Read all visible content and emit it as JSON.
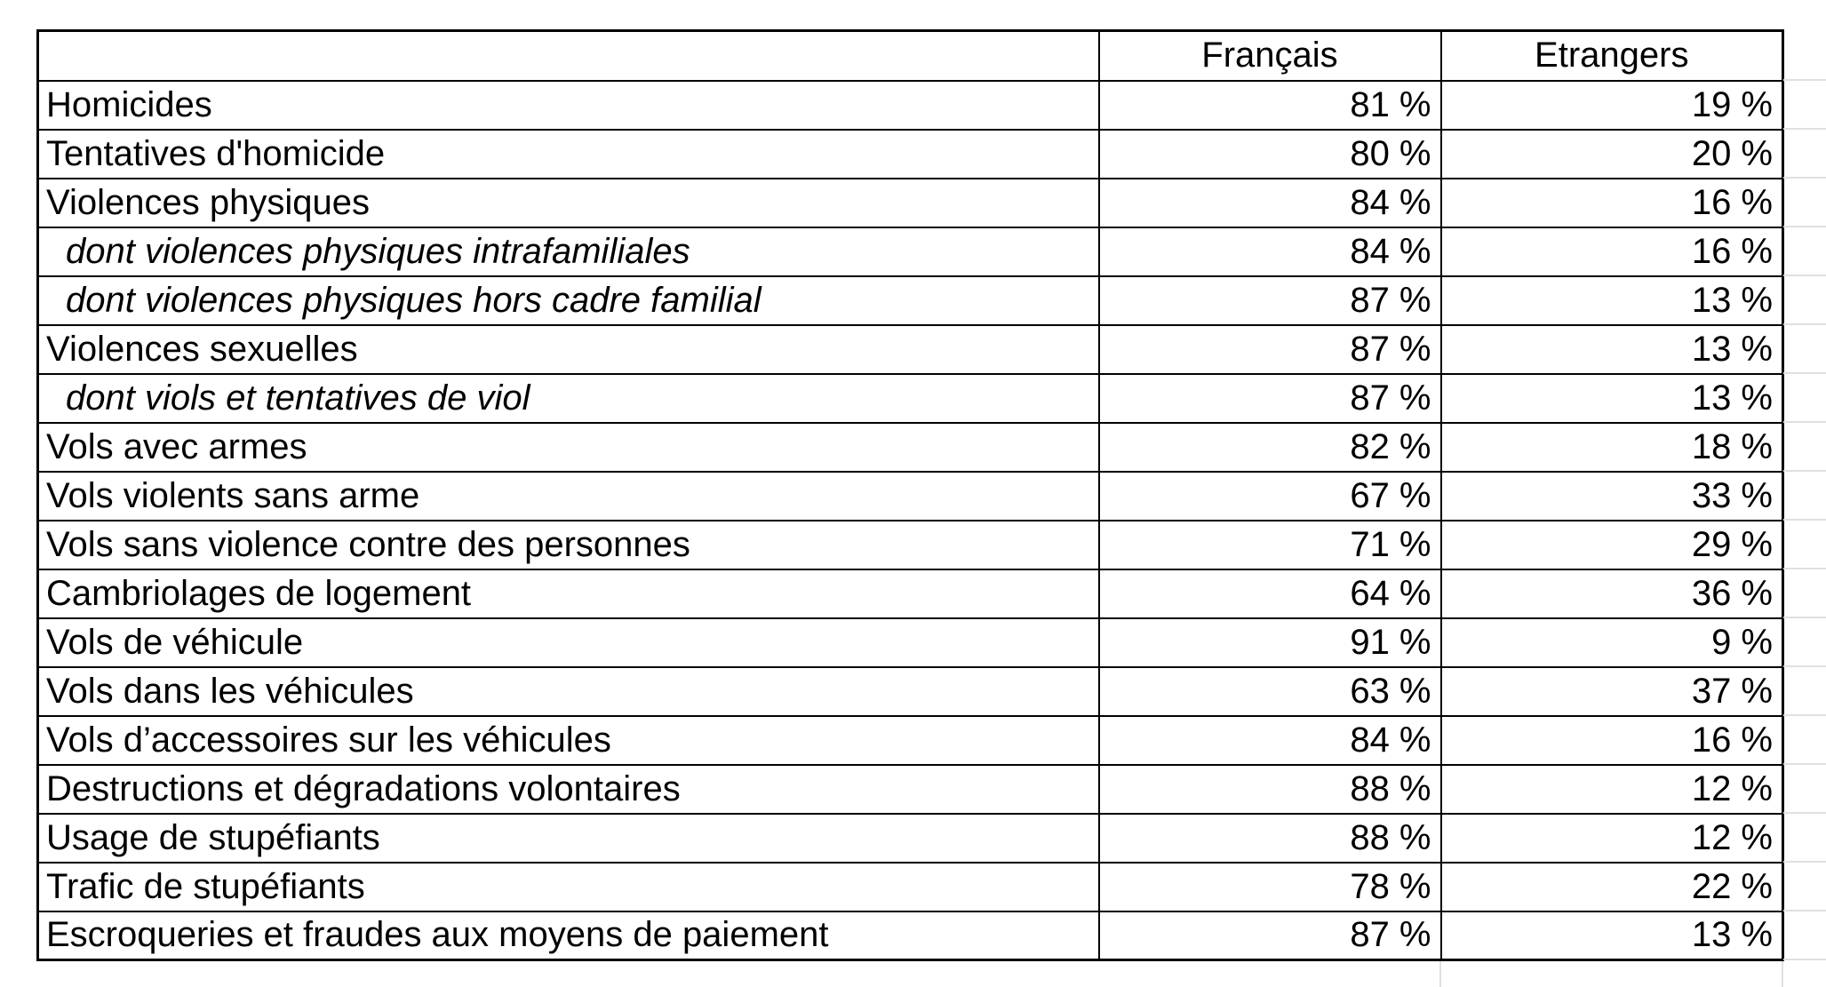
{
  "table": {
    "columns": [
      "",
      "Français",
      "Etrangers"
    ],
    "rows": [
      {
        "label": "Homicides",
        "francais": "81 %",
        "etrangers": "19 %",
        "sub": false
      },
      {
        "label": "Tentatives d'homicide",
        "francais": "80 %",
        "etrangers": "20 %",
        "sub": false
      },
      {
        "label": "Violences physiques",
        "francais": "84 %",
        "etrangers": "16 %",
        "sub": false
      },
      {
        "label": "dont violences physiques intrafamiliales",
        "francais": "84 %",
        "etrangers": "16 %",
        "sub": true
      },
      {
        "label": "dont violences physiques hors cadre familial",
        "francais": "87 %",
        "etrangers": "13 %",
        "sub": true
      },
      {
        "label": "Violences sexuelles",
        "francais": "87 %",
        "etrangers": "13 %",
        "sub": false
      },
      {
        "label": "dont viols et tentatives de viol",
        "francais": "87 %",
        "etrangers": "13 %",
        "sub": true
      },
      {
        "label": "Vols avec armes",
        "francais": "82 %",
        "etrangers": "18 %",
        "sub": false
      },
      {
        "label": "Vols violents sans arme",
        "francais": "67 %",
        "etrangers": "33 %",
        "sub": false
      },
      {
        "label": "Vols sans violence contre des personnes",
        "francais": "71 %",
        "etrangers": "29 %",
        "sub": false
      },
      {
        "label": "Cambriolages de logement",
        "francais": "64 %",
        "etrangers": "36 %",
        "sub": false
      },
      {
        "label": "Vols de véhicule",
        "francais": "91 %",
        "etrangers": "9 %",
        "sub": false
      },
      {
        "label": "Vols dans les véhicules",
        "francais": "63 %",
        "etrangers": "37 %",
        "sub": false
      },
      {
        "label": "Vols d’accessoires sur les véhicules",
        "francais": "84 %",
        "etrangers": "16 %",
        "sub": false
      },
      {
        "label": "Destructions et dégradations volontaires",
        "francais": "88 %",
        "etrangers": "12 %",
        "sub": false
      },
      {
        "label": "Usage de stupéfiants",
        "francais": "88 %",
        "etrangers": "12 %",
        "sub": false
      },
      {
        "label": "Trafic de stupéfiants",
        "francais": "78 %",
        "etrangers": "22 %",
        "sub": false
      },
      {
        "label": "Escroqueries et fraudes aux moyens de paiement",
        "francais": "87 %",
        "etrangers": "13 %",
        "sub": false
      }
    ]
  },
  "chart_data": {
    "type": "table",
    "title": "",
    "categories": [
      "Homicides",
      "Tentatives d'homicide",
      "Violences physiques",
      "dont violences physiques intrafamiliales",
      "dont violences physiques hors cadre familial",
      "Violences sexuelles",
      "dont viols et tentatives de viol",
      "Vols avec armes",
      "Vols violents sans arme",
      "Vols sans violence contre des personnes",
      "Cambriolages de logement",
      "Vols de véhicule",
      "Vols dans les véhicules",
      "Vols d’accessoires sur les véhicules",
      "Destructions et dégradations volontaires",
      "Usage de stupéfiants",
      "Trafic de stupéfiants",
      "Escroqueries et fraudes aux moyens de paiement"
    ],
    "series": [
      {
        "name": "Français",
        "values": [
          81,
          80,
          84,
          84,
          87,
          87,
          87,
          82,
          67,
          71,
          64,
          91,
          63,
          84,
          88,
          88,
          78,
          87
        ]
      },
      {
        "name": "Etrangers",
        "values": [
          19,
          20,
          16,
          16,
          13,
          13,
          13,
          18,
          33,
          29,
          36,
          9,
          37,
          16,
          12,
          12,
          22,
          13
        ]
      }
    ],
    "unit": "%",
    "legend_position": "none",
    "grid": "table-borders"
  },
  "colors": {
    "table_border": "#000000",
    "text": "#000000",
    "background": "#ffffff",
    "sheet_gridline": "#e0e0e0"
  }
}
